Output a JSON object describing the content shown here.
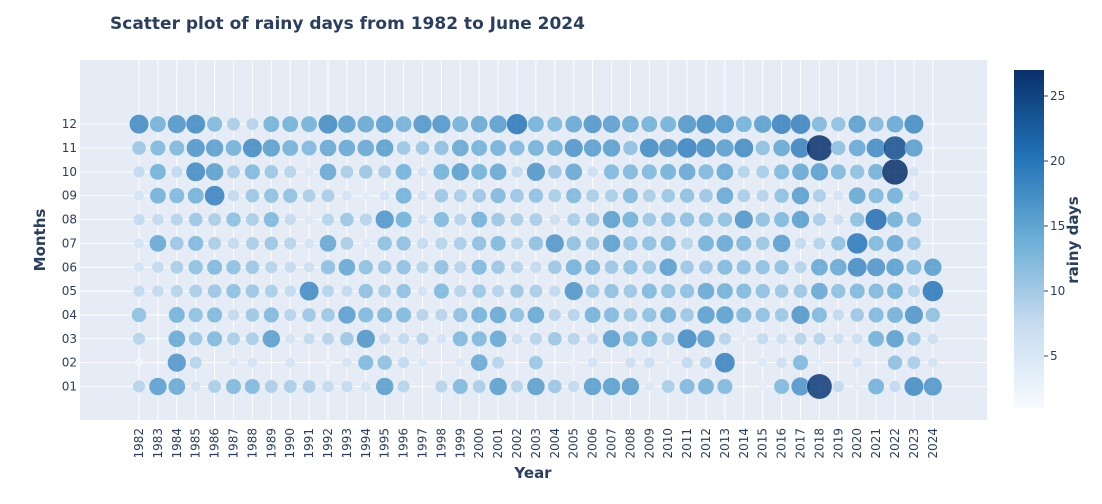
{
  "chart_data": {
    "type": "scatter",
    "title": "Scatter plot of rainy days from 1982 to June 2024",
    "xlabel": "Year",
    "ylabel": "Months",
    "colorbar_title": "rainy days",
    "colorbar_ticks": [
      5,
      10,
      15,
      20,
      25
    ],
    "color_range": [
      1,
      27
    ],
    "colorscale": [
      "#f7fbff",
      "#c6dbef",
      "#6baed6",
      "#2171b5",
      "#08306b"
    ],
    "years": [
      "1982",
      "1983",
      "1984",
      "1985",
      "1986",
      "1987",
      "1988",
      "1989",
      "1990",
      "1991",
      "1992",
      "1993",
      "1994",
      "1995",
      "1996",
      "1997",
      "1998",
      "1999",
      "2000",
      "2001",
      "2002",
      "2003",
      "2004",
      "2005",
      "2006",
      "2007",
      "2008",
      "2009",
      "2010",
      "2011",
      "2012",
      "2013",
      "2014",
      "2015",
      "2016",
      "2017",
      "2018",
      "2019",
      "2020",
      "2021",
      "2022",
      "2023",
      "2024"
    ],
    "months": [
      "01",
      "02",
      "03",
      "04",
      "05",
      "06",
      "07",
      "08",
      "09",
      "10",
      "11",
      "12"
    ],
    "rainy_days": {
      "1982": [
        9,
        2,
        9,
        12,
        8,
        6,
        6,
        8,
        6,
        8,
        11,
        18
      ],
      "1983": [
        16,
        0,
        0,
        0,
        8,
        8,
        15,
        8,
        14,
        14,
        13,
        14
      ],
      "1984": [
        15,
        17,
        15,
        14,
        9,
        10,
        11,
        9,
        13,
        8,
        13,
        17
      ],
      "1985": [
        6,
        9,
        11,
        12,
        10,
        12,
        13,
        11,
        14,
        18,
        17,
        18
      ],
      "1986": [
        10,
        0,
        13,
        13,
        11,
        13,
        10,
        10,
        19,
        16,
        16,
        13
      ],
      "1987": [
        13,
        5,
        10,
        8,
        12,
        12,
        8,
        12,
        8,
        10,
        14,
        10
      ],
      "1988": [
        13,
        6,
        10,
        11,
        11,
        11,
        10,
        10,
        11,
        13,
        18,
        9
      ],
      "1989": [
        10,
        0,
        16,
        13,
        10,
        9,
        11,
        13,
        12,
        11,
        16,
        14
      ],
      "1990": [
        10,
        6,
        6,
        9,
        8,
        8,
        9,
        8,
        12,
        9,
        14,
        14
      ],
      "1991": [
        10,
        0,
        8,
        11,
        18,
        7,
        6,
        5,
        10,
        5,
        13,
        14
      ],
      "1992": [
        8,
        3,
        9,
        11,
        9,
        12,
        15,
        9,
        10,
        15,
        15,
        18
      ],
      "1993": [
        8,
        6,
        11,
        16,
        8,
        15,
        10,
        11,
        6,
        10,
        15,
        16
      ],
      "1994": [
        6,
        13,
        17,
        13,
        12,
        12,
        5,
        9,
        4,
        11,
        15,
        15
      ],
      "1995": [
        16,
        12,
        8,
        13,
        10,
        11,
        12,
        17,
        6,
        10,
        16,
        16
      ],
      "1996": [
        9,
        8,
        8,
        13,
        12,
        12,
        12,
        14,
        14,
        14,
        11,
        14
      ],
      "1997": [
        0,
        5,
        9,
        9,
        6,
        9,
        8,
        6,
        6,
        6,
        11,
        17
      ],
      "1998": [
        9,
        0,
        6,
        9,
        13,
        12,
        9,
        13,
        11,
        14,
        12,
        17
      ],
      "1999": [
        13,
        5,
        13,
        12,
        9,
        9,
        10,
        9,
        10,
        16,
        15,
        14
      ],
      "2000": [
        10,
        15,
        13,
        14,
        11,
        13,
        12,
        14,
        11,
        14,
        14,
        15
      ],
      "2001": [
        16,
        9,
        15,
        15,
        9,
        11,
        13,
        11,
        13,
        15,
        14,
        16
      ],
      "2002": [
        9,
        0,
        7,
        12,
        11,
        9,
        9,
        10,
        11,
        8,
        13,
        20
      ],
      "2003": [
        16,
        11,
        9,
        15,
        10,
        8,
        12,
        10,
        12,
        17,
        14,
        14
      ],
      "2004": [
        11,
        0,
        11,
        9,
        8,
        11,
        17,
        7,
        10,
        11,
        14,
        13
      ],
      "2005": [
        8,
        3,
        9,
        9,
        17,
        14,
        12,
        10,
        13,
        15,
        17,
        15
      ],
      "2006": [
        16,
        6,
        8,
        14,
        11,
        13,
        11,
        11,
        10,
        7,
        16,
        17
      ],
      "2007": [
        16,
        0,
        16,
        13,
        12,
        11,
        16,
        16,
        10,
        13,
        16,
        16
      ],
      "2008": [
        16,
        7,
        13,
        11,
        11,
        12,
        12,
        14,
        13,
        13,
        12,
        15
      ],
      "2009": [
        5,
        7,
        14,
        12,
        13,
        11,
        12,
        11,
        10,
        13,
        18,
        14
      ],
      "2010": [
        10,
        4,
        10,
        14,
        12,
        16,
        13,
        12,
        11,
        14,
        17,
        14
      ],
      "2011": [
        13,
        8,
        18,
        11,
        12,
        11,
        9,
        12,
        12,
        15,
        19,
        17
      ],
      "2012": [
        14,
        9,
        16,
        16,
        15,
        11,
        14,
        12,
        11,
        13,
        18,
        18
      ],
      "2013": [
        13,
        19,
        9,
        16,
        14,
        13,
        15,
        12,
        15,
        15,
        16,
        17
      ],
      "2014": [
        0,
        0,
        4,
        13,
        13,
        12,
        13,
        17,
        10,
        9,
        18,
        14
      ],
      "2015": [
        4,
        5,
        8,
        12,
        12,
        12,
        11,
        12,
        9,
        10,
        12,
        16
      ],
      "2016": [
        13,
        7,
        7,
        11,
        11,
        12,
        16,
        13,
        12,
        13,
        15,
        19
      ],
      "2017": [
        17,
        13,
        9,
        17,
        11,
        9,
        8,
        16,
        16,
        15,
        19,
        19
      ],
      "2018": [
        26,
        4,
        9,
        13,
        15,
        15,
        9,
        10,
        10,
        16,
        27,
        13
      ],
      "2019": [
        8,
        0,
        7,
        8,
        12,
        15,
        12,
        7,
        6,
        13,
        12,
        12
      ],
      "2020": [
        4,
        6,
        7,
        11,
        13,
        18,
        20,
        12,
        15,
        12,
        15,
        16
      ],
      "2021": [
        14,
        0,
        14,
        13,
        13,
        17,
        13,
        21,
        13,
        14,
        18,
        13
      ],
      "2022": [
        8,
        12,
        16,
        14,
        14,
        16,
        15,
        14,
        14,
        27,
        24,
        15
      ],
      "2023": [
        18,
        10,
        11,
        17,
        9,
        13,
        11,
        12,
        7,
        6,
        16,
        18
      ],
      "2024": [
        17,
        6,
        7,
        12,
        20,
        16,
        0,
        0,
        0,
        0,
        0,
        0
      ]
    }
  }
}
